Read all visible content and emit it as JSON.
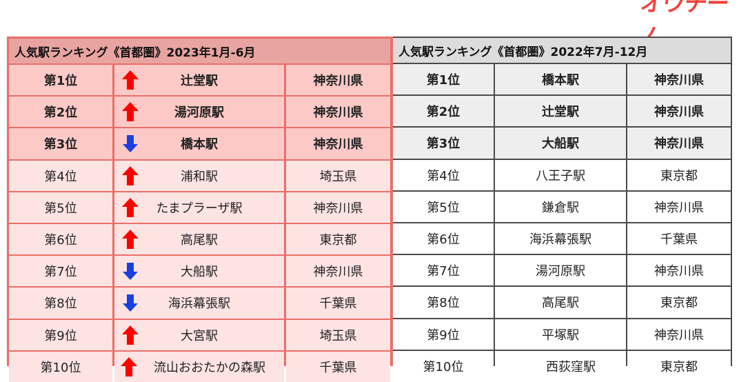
{
  "logo": {
    "text": "オウチーノ",
    "color": "#f0413a"
  },
  "left_table": {
    "title": "人気駅ランキング《首都圏》2023年1月-6月",
    "rows": [
      {
        "rank": "第1位",
        "trend": "up",
        "station": "辻堂駅",
        "prefecture": "神奈川県"
      },
      {
        "rank": "第2位",
        "trend": "up",
        "station": "湯河原駅",
        "prefecture": "神奈川県"
      },
      {
        "rank": "第3位",
        "trend": "down",
        "station": "橋本駅",
        "prefecture": "神奈川県"
      },
      {
        "rank": "第4位",
        "trend": "up",
        "station": "浦和駅",
        "prefecture": "埼玉県"
      },
      {
        "rank": "第5位",
        "trend": "up",
        "station": "たまプラーザ駅",
        "prefecture": "神奈川県"
      },
      {
        "rank": "第6位",
        "trend": "up",
        "station": "高尾駅",
        "prefecture": "東京都"
      },
      {
        "rank": "第7位",
        "trend": "down",
        "station": "大船駅",
        "prefecture": "神奈川県"
      },
      {
        "rank": "第8位",
        "trend": "down",
        "station": "海浜幕張駅",
        "prefecture": "千葉県"
      },
      {
        "rank": "第9位",
        "trend": "up",
        "station": "大宮駅",
        "prefecture": "埼玉県"
      },
      {
        "rank": "第10位",
        "trend": "up",
        "station": "流山おおたかの森駅",
        "prefecture": "千葉県"
      }
    ]
  },
  "right_table": {
    "title": "人気駅ランキング《首都圏》2022年7月-12月",
    "rows": [
      {
        "rank": "第1位",
        "station": "橋本駅",
        "prefecture": "神奈川県"
      },
      {
        "rank": "第2位",
        "station": "辻堂駅",
        "prefecture": "神奈川県"
      },
      {
        "rank": "第3位",
        "station": "大船駅",
        "prefecture": "神奈川県"
      },
      {
        "rank": "第4位",
        "station": "八王子駅",
        "prefecture": "東京都"
      },
      {
        "rank": "第5位",
        "station": "鎌倉駅",
        "prefecture": "神奈川県"
      },
      {
        "rank": "第6位",
        "station": "海浜幕張駅",
        "prefecture": "千葉県"
      },
      {
        "rank": "第7位",
        "station": "湯河原駅",
        "prefecture": "神奈川県"
      },
      {
        "rank": "第8位",
        "station": "高尾駅",
        "prefecture": "東京都"
      },
      {
        "rank": "第9位",
        "station": "平塚駅",
        "prefecture": "神奈川県"
      },
      {
        "rank": "第10位",
        "station": "西荻窪駅",
        "prefecture": "東京都"
      }
    ]
  },
  "colors": {
    "arrow_up": "#ff0000",
    "arrow_down": "#1a3fe0",
    "left_border": "#ea6e68",
    "right_border": "#4a4a4a"
  }
}
